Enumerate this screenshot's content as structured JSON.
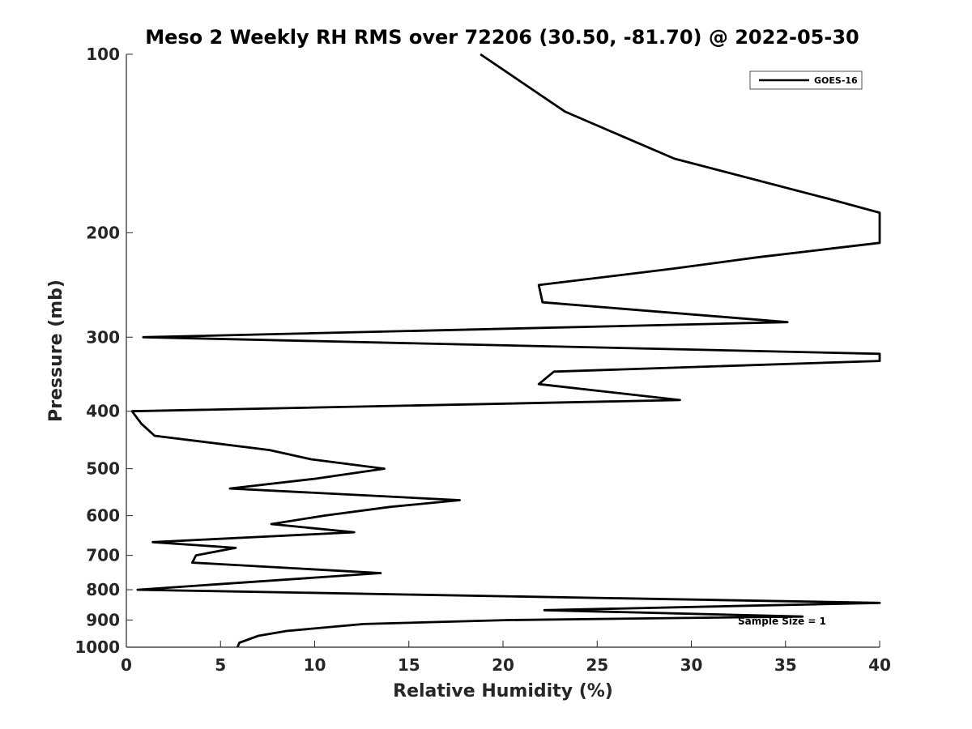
{
  "chart_data": {
    "type": "line",
    "title": "Meso 2 Weekly RH RMS over 72206 (30.50, -81.70) @ 2022-05-30",
    "xlabel": "Relative Humidity (%)",
    "ylabel": "Pressure (mb)",
    "xlim": [
      0,
      40
    ],
    "ylim": [
      100,
      1000
    ],
    "y_scale": "log",
    "y_reversed": true,
    "x_ticks": [
      "0",
      "5",
      "10",
      "15",
      "20",
      "25",
      "30",
      "35",
      "40"
    ],
    "y_ticks": [
      "100",
      "200",
      "300",
      "400",
      "500",
      "600",
      "700",
      "800",
      "900",
      "1000"
    ],
    "grid": false,
    "legend_position": "top-right",
    "annotation": "Sample Size = 1",
    "series": [
      {
        "name": "GOES-16",
        "color": "#000000",
        "points": [
          [
            18.8,
            100
          ],
          [
            23.3,
            125
          ],
          [
            29.1,
            150
          ],
          [
            37.2,
            175
          ],
          [
            40.0,
            185
          ],
          [
            40.0,
            208
          ],
          [
            33.5,
            220
          ],
          [
            29.0,
            230
          ],
          [
            21.9,
            245
          ],
          [
            22.1,
            262
          ],
          [
            35.1,
            283
          ],
          [
            0.9,
            300
          ],
          [
            40.0,
            320
          ],
          [
            40.0,
            329
          ],
          [
            22.7,
            343
          ],
          [
            21.9,
            360
          ],
          [
            29.4,
            383
          ],
          [
            0.3,
            400
          ],
          [
            0.8,
            420
          ],
          [
            1.5,
            440
          ],
          [
            7.6,
            465
          ],
          [
            9.8,
            482
          ],
          [
            13.7,
            500
          ],
          [
            10.0,
            520
          ],
          [
            5.5,
            540
          ],
          [
            17.7,
            565
          ],
          [
            14.0,
            580
          ],
          [
            10.5,
            600
          ],
          [
            7.7,
            620
          ],
          [
            12.1,
            640
          ],
          [
            6.9,
            652
          ],
          [
            1.4,
            665
          ],
          [
            5.8,
            680
          ],
          [
            3.7,
            700
          ],
          [
            3.5,
            720
          ],
          [
            13.5,
            750
          ],
          [
            0.6,
            800
          ],
          [
            40.0,
            842
          ],
          [
            22.2,
            866
          ],
          [
            35.9,
            888
          ],
          [
            20.3,
            900
          ],
          [
            12.6,
            914
          ],
          [
            8.5,
            939
          ],
          [
            7.0,
            957
          ],
          [
            6.0,
            983
          ],
          [
            5.9,
            1000
          ]
        ]
      }
    ]
  }
}
